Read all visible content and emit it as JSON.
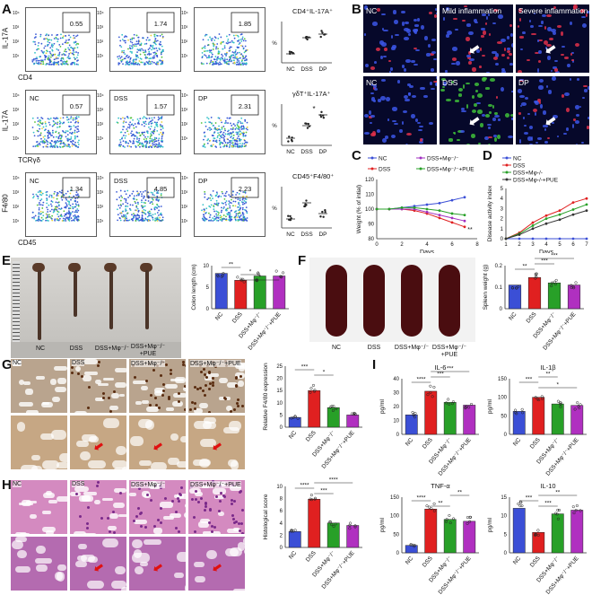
{
  "panel_letters": [
    "A",
    "B",
    "C",
    "D",
    "E",
    "F",
    "G",
    "H",
    "I"
  ],
  "A": {
    "rows": [
      {
        "ylabel": "IL-17A",
        "xlabel": "CD4",
        "plots": [
          {
            "tag": "",
            "value": "0.55"
          },
          {
            "tag": "",
            "value": "1.74"
          },
          {
            "tag": "",
            "value": "1.85"
          }
        ],
        "title": "CD4⁺IL-17A⁺"
      },
      {
        "ylabel": "IL-17A",
        "xlabel": "TCRγδ",
        "plots": [
          {
            "tag": "NC",
            "value": "0.57"
          },
          {
            "tag": "DSS",
            "value": "1.57"
          },
          {
            "tag": "DP",
            "value": "2.31"
          }
        ],
        "title": "γδT⁺IL-17A⁺"
      },
      {
        "ylabel": "F4/80",
        "xlabel": "CD45",
        "plots": [
          {
            "tag": "NC",
            "value": "1.34"
          },
          {
            "tag": "DSS",
            "value": "4.85"
          },
          {
            "tag": "DP",
            "value": "2.23"
          }
        ],
        "title": "CD45⁺F4/80⁺"
      }
    ],
    "scatter_groups": [
      "NC",
      "DSS",
      "DP"
    ],
    "pct": "%"
  },
  "B": {
    "top": [
      "NC",
      "Mild inflammation",
      "Severe inflammation"
    ],
    "bottom": [
      "NC",
      "DSS",
      "DP"
    ]
  },
  "chart_data": [
    {
      "panel": "C",
      "type": "line",
      "ylabel": "Weight (% of intial)",
      "xlabel": "Days",
      "x": [
        0,
        1,
        2,
        3,
        4,
        5,
        6,
        7
      ],
      "ylim": [
        80,
        120
      ],
      "yticks": [
        "120",
        "110",
        "100",
        "90",
        "80"
      ],
      "xticks": [
        "0",
        "2",
        "4",
        "6",
        "8"
      ],
      "legend": [
        "NC",
        "DSS",
        "DSS+Mφ⁻/⁻",
        "DSS+Mφ⁻/⁻+PUE"
      ],
      "annotation": "**",
      "series": [
        {
          "name": "NC",
          "color": "#3b4fd6",
          "values": [
            100,
            100,
            101,
            102,
            103,
            104,
            106,
            108
          ]
        },
        {
          "name": "DSS",
          "color": "#e02020",
          "values": [
            100,
            100,
            100,
            99,
            97,
            94,
            91,
            88
          ]
        },
        {
          "name": "DSS+Mφ⁻/⁻",
          "color": "#a030c0",
          "values": [
            100,
            100,
            100,
            100,
            98,
            96,
            94,
            92
          ]
        },
        {
          "name": "DSS+Mφ⁻/⁻+PUE",
          "color": "#28a028",
          "values": [
            100,
            100,
            101,
            101,
            100,
            99,
            97,
            96
          ]
        }
      ]
    },
    {
      "panel": "D",
      "type": "line",
      "ylabel": "Disease activity index",
      "xlabel": "Days",
      "x": [
        1,
        2,
        3,
        4,
        5,
        6,
        7
      ],
      "ylim": [
        0,
        5
      ],
      "yticks": [
        "5",
        "4",
        "3",
        "2",
        "1",
        "0"
      ],
      "xticks": [
        "1",
        "2",
        "3",
        "4",
        "5",
        "6",
        "7"
      ],
      "legend": [
        "NC",
        "DSS",
        "DSS+Mφ-/-",
        "DSS+Mφ-/-+PUE"
      ],
      "series": [
        {
          "name": "NC",
          "color": "#3b4fd6",
          "values": [
            0,
            0,
            0,
            0,
            0,
            0,
            0
          ]
        },
        {
          "name": "DSS",
          "color": "#e02020",
          "values": [
            0,
            0.6,
            1.6,
            2.3,
            2.8,
            3.6,
            4.0
          ]
        },
        {
          "name": "DSS+Mφ-/-",
          "color": "#28a028",
          "values": [
            0,
            0.5,
            1.3,
            2.0,
            2.4,
            2.9,
            3.4
          ]
        },
        {
          "name": "DSS+Mφ-/-+PUE",
          "color": "#333333",
          "values": [
            0,
            0.4,
            1.0,
            1.5,
            1.9,
            2.4,
            2.8
          ]
        }
      ]
    },
    {
      "panel": "E",
      "type": "bar",
      "ylabel": "Colon length (cm)",
      "categories": [
        "NC",
        "DSS",
        "DSS+Mφ⁻/⁻",
        "DSS+Mφ⁻/⁻+PUE"
      ],
      "values": [
        8.2,
        6.6,
        7.6,
        7.6
      ],
      "ylim": [
        0,
        10
      ],
      "yticks": [
        "10",
        "5",
        "0"
      ],
      "sig": [
        "**",
        "*",
        "*"
      ]
    },
    {
      "panel": "F",
      "type": "bar",
      "ylabel": "Spleen weight (g)",
      "categories": [
        "NC",
        "DSS",
        "DSS+Mφ⁻/⁻",
        "DSS+Mφ⁻/⁻+PUE"
      ],
      "values": [
        0.11,
        0.145,
        0.12,
        0.11
      ],
      "ylim": [
        0,
        0.2
      ],
      "yticks": [
        "0.2",
        "0.1",
        "0"
      ],
      "sig": [
        "**",
        "***",
        "***"
      ]
    },
    {
      "panel": "G",
      "type": "bar",
      "ylabel": "Relative F4/80 expression",
      "categories": [
        "NC",
        "DSS",
        "DSS+Mφ⁻/⁻",
        "DSS+Mφ⁻/⁻+PUE"
      ],
      "values": [
        4,
        15,
        8,
        5
      ],
      "ylim": [
        0,
        25
      ],
      "yticks": [
        "25",
        "20",
        "15",
        "10",
        "5",
        "0"
      ],
      "sig": [
        "***",
        "*"
      ]
    },
    {
      "panel": "H",
      "type": "bar",
      "ylabel": "Histological score",
      "categories": [
        "NC",
        "DSS",
        "DSS+Mφ⁻/⁻",
        "DSS+Mφ⁻/⁻+PUE"
      ],
      "values": [
        2.6,
        7.9,
        4.0,
        3.6
      ],
      "ylim": [
        0,
        10
      ],
      "yticks": [
        "10",
        "8",
        "6",
        "4",
        "2",
        "0"
      ],
      "sig": [
        "****",
        "***",
        "****"
      ]
    },
    {
      "panel": "I1",
      "type": "bar",
      "title": "IL-6",
      "ylabel": "pg/ml",
      "categories": [
        "NC",
        "DSS",
        "DSS+Mφ⁻/⁻",
        "DSS+Mφ⁻/⁻+PUE"
      ],
      "values": [
        14,
        31,
        23,
        21
      ],
      "ylim": [
        0,
        40
      ],
      "yticks": [
        "40",
        "30",
        "20",
        "10",
        "0"
      ],
      "sig": [
        "****",
        "***",
        "***"
      ]
    },
    {
      "panel": "I2",
      "type": "bar",
      "title": "IL-1β",
      "ylabel": "pg/ml",
      "categories": [
        "NC",
        "DSS",
        "DSS+Mφ⁻/⁻",
        "DSS+Mφ⁻/⁻+PUE"
      ],
      "values": [
        62,
        100,
        82,
        78
      ],
      "ylim": [
        0,
        150
      ],
      "yticks": [
        "150",
        "100",
        "50",
        "0"
      ],
      "sig": [
        "***",
        "**",
        "*"
      ]
    },
    {
      "panel": "I3",
      "type": "bar",
      "title": "TNF-α",
      "ylabel": "pg/ml",
      "categories": [
        "NC",
        "DSS",
        "DSS+Mφ⁻/⁻",
        "DSS+Mφ⁻/⁻+PUE"
      ],
      "values": [
        20,
        118,
        90,
        85
      ],
      "ylim": [
        0,
        150
      ],
      "yticks": [
        "150",
        "100",
        "50",
        "0"
      ],
      "sig": [
        "****",
        "**",
        "**"
      ]
    },
    {
      "panel": "I4",
      "type": "bar",
      "title": "IL-10",
      "ylabel": "pg/ml",
      "categories": [
        "NC",
        "DSS",
        "DSS+Mφ⁻/⁻",
        "DSS+Mφ⁻/⁻+PUE"
      ],
      "values": [
        12,
        5.5,
        10.5,
        11.5
      ],
      "ylim": [
        0,
        15
      ],
      "yticks": [
        "15",
        "10",
        "5",
        "0"
      ],
      "sig": [
        "***",
        "***",
        "**"
      ]
    }
  ],
  "E_photo_labels": [
    "NC",
    "DSS",
    "DSS+Mφ⁻/⁻",
    "DSS+Mφ⁻/⁻\n+PUE"
  ],
  "F_photo_labels": [
    "NC",
    "DSS",
    "DSS+Mφ⁻/⁻",
    "DSS+Mφ⁻/⁻\n+PUE"
  ],
  "G_tiles": [
    "NC",
    "DSS",
    "DSS+Mφ⁻/⁻",
    "DSS+Mφ⁻/⁻+PUE"
  ],
  "H_tiles": [
    "NC",
    "DSS",
    "DSS+Mφ⁻/⁻",
    "DSS+Mφ⁻/⁻+PUE"
  ],
  "colors": {
    "NC": "#3b4fd6",
    "DSS": "#e02020",
    "Mphi": "#28a028",
    "PUE": "#b030c0"
  }
}
